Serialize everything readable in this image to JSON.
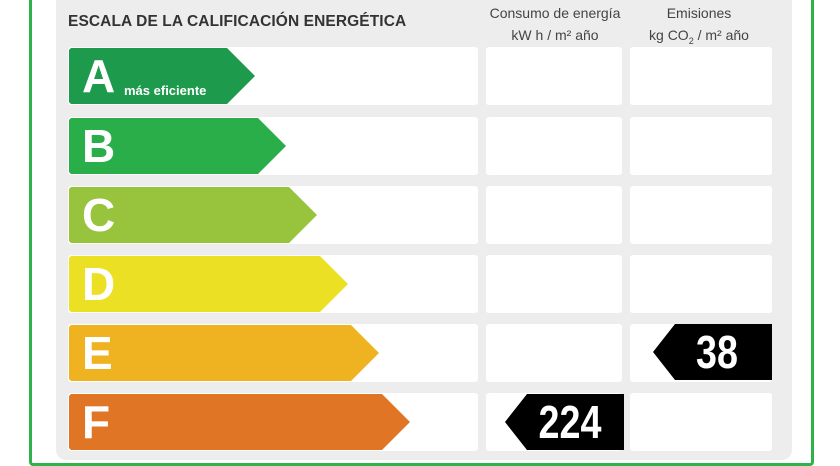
{
  "header": {
    "title": "ESCALA DE LA CALIFICACIÓN ENERGÉTICA",
    "consumption": {
      "line1": "Consumo de energía",
      "line2": "kW h  / m² año"
    },
    "emissions": {
      "line1": "Emisiones",
      "line2_pre": "kg CO",
      "line2_sub": "2",
      "line2_post": "  / m² año"
    }
  },
  "scale": [
    {
      "letter": "A",
      "sublabel": "más eficiente",
      "color": "#1d9a4b"
    },
    {
      "letter": "B",
      "sublabel": "",
      "color": "#2aae4a"
    },
    {
      "letter": "C",
      "sublabel": "",
      "color": "#97c33d"
    },
    {
      "letter": "D",
      "sublabel": "",
      "color": "#ebe024"
    },
    {
      "letter": "E",
      "sublabel": "",
      "color": "#efb321"
    },
    {
      "letter": "F",
      "sublabel": "",
      "color": "#e17526"
    }
  ],
  "ratings": {
    "consumption": {
      "class": "F",
      "value": "224"
    },
    "emissions": {
      "class": "E",
      "value": "38"
    }
  },
  "colors": {
    "frame": "#2eb24a",
    "panel": "#ededed",
    "badge": "#000000"
  }
}
